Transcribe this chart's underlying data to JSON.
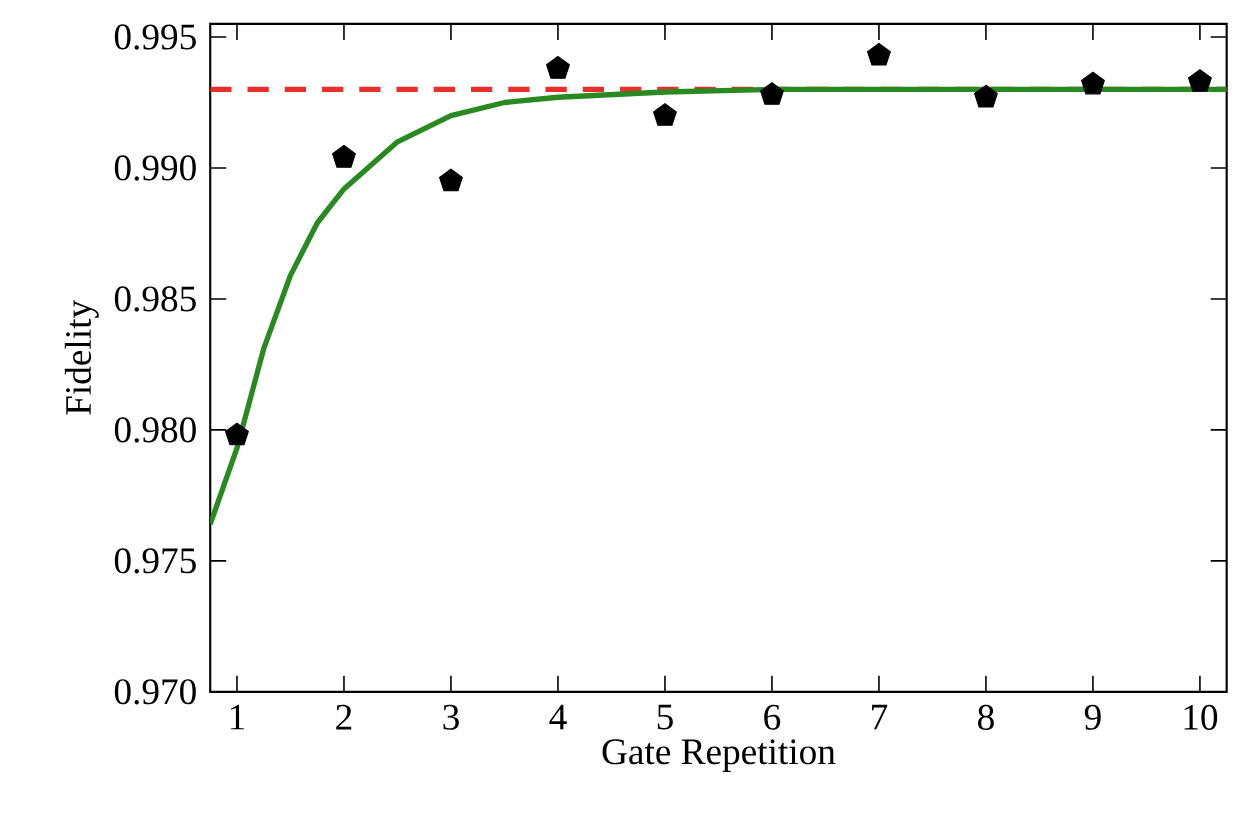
{
  "chart_data": {
    "type": "scatter",
    "xlabel": "Gate Repetition",
    "ylabel": "Fidelity",
    "xlim": [
      0.75,
      10.25
    ],
    "xticks": [
      1,
      2,
      3,
      4,
      5,
      6,
      7,
      8,
      9,
      10
    ],
    "ylim": [
      0.97,
      0.9955
    ],
    "yticks": [
      {
        "value": 0.97,
        "label": "0.970"
      },
      {
        "value": 0.975,
        "label": "0.975"
      },
      {
        "value": 0.98,
        "label": "0.980"
      },
      {
        "value": 0.985,
        "label": "0.985"
      },
      {
        "value": 0.99,
        "label": "0.990"
      },
      {
        "value": 0.995,
        "label": "0.995"
      }
    ],
    "grid": false,
    "ref_lines": [
      {
        "axis": "y",
        "value": 0.993,
        "color": "#e8302a",
        "line_style": "dashed"
      }
    ],
    "series": [
      {
        "type": "line",
        "color": "#2a8a22",
        "marker": "none",
        "line_style": "solid",
        "x": [
          0.75,
          1,
          1.25,
          1.5,
          1.75,
          2,
          2.5,
          3,
          3.5,
          4,
          5,
          6,
          8,
          10.25
        ],
        "values": [
          0.9764,
          0.9793,
          0.9831,
          0.9859,
          0.9879,
          0.9892,
          0.991,
          0.992,
          0.9925,
          0.9927,
          0.9929,
          0.993,
          0.993,
          0.993
        ]
      },
      {
        "color": "#000000",
        "x": [
          1,
          2,
          3,
          4,
          5,
          6,
          7,
          8,
          9,
          10
        ],
        "values": [
          0.9798,
          0.9904,
          0.9895,
          0.9938,
          0.992,
          0.9928,
          0.9943,
          0.9927,
          0.9932,
          0.9933
        ]
      }
    ]
  }
}
